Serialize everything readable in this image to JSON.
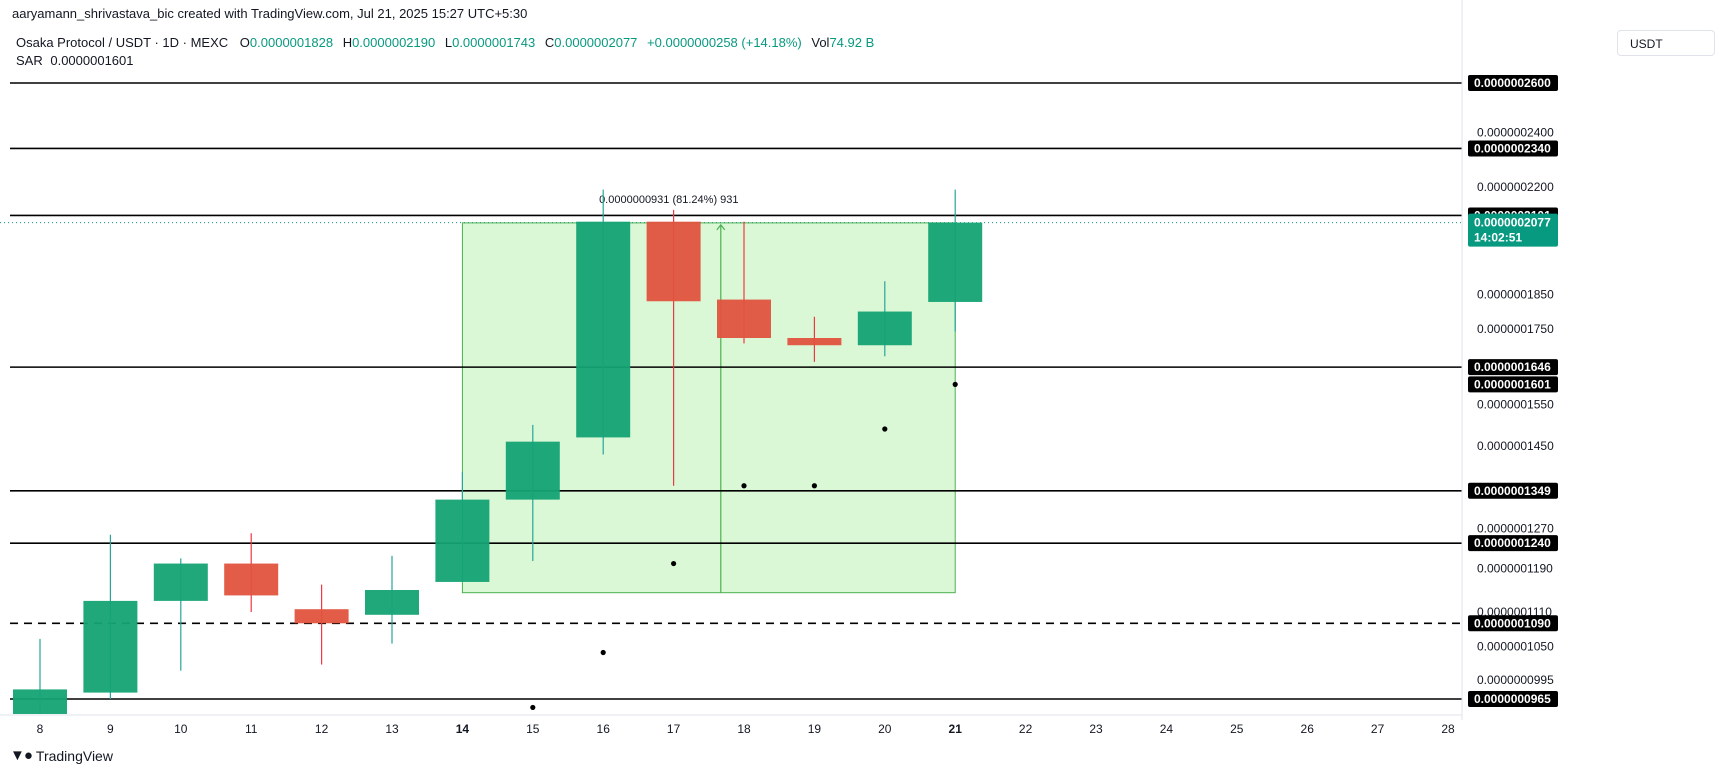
{
  "header": {
    "attribution": "aaryamann_shrivastava_bic created with TradingView.com, Jul 21, 2025 15:27 UTC+5:30",
    "symbol": "Osaka Protocol / USDT · 1D · MEXC",
    "open_label": "O",
    "open": "0.0000001828",
    "high_label": "H",
    "high": "0.0000002190",
    "low_label": "L",
    "low": "0.0000001743",
    "close_label": "C",
    "close": "0.0000002077",
    "change": "+0.0000000258 (+14.18%)",
    "vol_label": "Vol",
    "vol": "74.92 B",
    "sar_label": "SAR",
    "sar": "0.0000001601",
    "currency": "USDT"
  },
  "footer": {
    "brand": "TradingView",
    "logo_icon": "tradingview-logo-icon"
  },
  "colors": {
    "up": "#26a69a",
    "up_body": "#089981",
    "down": "#f23645",
    "down_body": "#e0533e",
    "zone": "#ccf5c4",
    "zone_edge": "#4caf50"
  },
  "chart_data": {
    "type": "candlestick",
    "y_axis": "log",
    "candles": [
      {
        "day": "8",
        "o": 9.42e-08,
        "h": 1.063e-07,
        "l": 9.42e-08,
        "c": 9.8e-08
      },
      {
        "day": "9",
        "o": 9.75e-08,
        "h": 1.257e-07,
        "l": 9.65e-08,
        "c": 1.13e-07
      },
      {
        "day": "10",
        "o": 1.13e-07,
        "h": 1.21e-07,
        "l": 1.01e-07,
        "c": 1.2e-07
      },
      {
        "day": "11",
        "o": 1.2e-07,
        "h": 1.26e-07,
        "l": 1.11e-07,
        "c": 1.14e-07
      },
      {
        "day": "12",
        "o": 1.115e-07,
        "h": 1.16e-07,
        "l": 1.02e-07,
        "c": 1.09e-07
      },
      {
        "day": "13",
        "o": 1.105e-07,
        "h": 1.215e-07,
        "l": 1.055e-07,
        "c": 1.15e-07
      },
      {
        "day": "14",
        "o": 1.165e-07,
        "h": 1.39e-07,
        "l": 1.165e-07,
        "c": 1.33e-07
      },
      {
        "day": "15",
        "o": 1.33e-07,
        "h": 1.5e-07,
        "l": 1.205e-07,
        "c": 1.46e-07
      },
      {
        "day": "16",
        "o": 1.47e-07,
        "h": 2.19e-07,
        "l": 1.43e-07,
        "c": 2.08e-07
      },
      {
        "day": "17",
        "o": 2.08e-07,
        "h": 2.12e-07,
        "l": 1.36e-07,
        "c": 1.83e-07
      },
      {
        "day": "18",
        "o": 1.835e-07,
        "h": 2.08e-07,
        "l": 1.71e-07,
        "c": 1.725e-07
      },
      {
        "day": "19",
        "o": 1.725e-07,
        "h": 1.785e-07,
        "l": 1.66e-07,
        "c": 1.705e-07
      },
      {
        "day": "20",
        "o": 1.705e-07,
        "h": 1.89e-07,
        "l": 1.675e-07,
        "c": 1.8e-07
      },
      {
        "day": "21",
        "o": 1.828e-07,
        "h": 2.19e-07,
        "l": 1.743e-07,
        "c": 2.077e-07
      }
    ],
    "sar": [
      {
        "day": "15",
        "v": 9.52e-08
      },
      {
        "day": "16",
        "v": 1.04e-07
      },
      {
        "day": "17",
        "v": 1.2e-07
      },
      {
        "day": "18",
        "v": 1.36e-07
      },
      {
        "day": "19",
        "v": 1.36e-07
      },
      {
        "day": "20",
        "v": 1.49e-07
      },
      {
        "day": "21",
        "v": 1.601e-07
      }
    ],
    "x_labels": [
      "8",
      "9",
      "10",
      "11",
      "12",
      "13",
      "14",
      "15",
      "16",
      "17",
      "18",
      "19",
      "20",
      "21",
      "22",
      "23",
      "24",
      "25",
      "26",
      "27",
      "28"
    ],
    "x_label_bold": [
      "14",
      "21"
    ],
    "y_ticks": [
      "0.0000002400",
      "0.0000002200",
      "0.0000001850",
      "0.0000001750",
      "0.0000001550",
      "0.0000001450",
      "0.0000001270",
      "0.0000001190",
      "0.0000001110",
      "0.0000001050",
      "0.0000000995"
    ],
    "hlines": [
      {
        "value": 2.6e-07,
        "label": "0.0000002600",
        "dashed": false
      },
      {
        "value": 2.34e-07,
        "label": "0.0000002340",
        "dashed": false
      },
      {
        "value": 2.101e-07,
        "label": "0.0000002101",
        "dashed": false
      },
      {
        "value": 1.646e-07,
        "label": "0.0000001646",
        "dashed": false
      },
      {
        "value": 1.349e-07,
        "label": "0.0000001349",
        "dashed": false
      },
      {
        "value": 1.24e-07,
        "label": "0.0000001240",
        "dashed": false
      },
      {
        "value": 1.09e-07,
        "label": "0.0000001090",
        "dashed": true
      },
      {
        "value": 9.65e-08,
        "label": "0.0000000965",
        "dashed": false
      }
    ],
    "sar_label": "0.0000001601",
    "price_label": {
      "value": 2.077e-07,
      "label": "0.0000002077",
      "countdown": "14:02:51"
    },
    "measure": {
      "from_day": "14",
      "to_day": "21",
      "low": 1.145e-07,
      "high": 2.076e-07,
      "label": "0.0000000931 (81.24%) 931"
    }
  }
}
